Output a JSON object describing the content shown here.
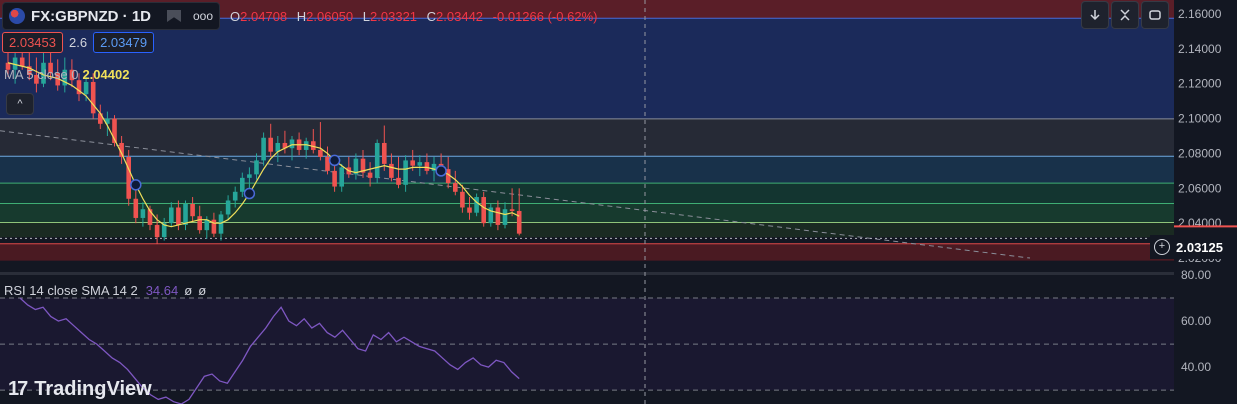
{
  "header": {
    "symbol": "FX:GBPNZD · 1D",
    "more": "ooo",
    "open_key": "O",
    "open": "2.04708",
    "high_key": "H",
    "high": "2.06050",
    "low_key": "L",
    "low": "2.03321",
    "close_key": "C",
    "close": "2.03442",
    "change": "-0.01266 (-0.62%)"
  },
  "quote": {
    "bid": "2.03453",
    "spread": "2.6",
    "ask": "2.03479"
  },
  "ma_legend": {
    "label": "MA 5 close 0",
    "value": "2.04402"
  },
  "rsi_legend": {
    "label": "RSI 14 close SMA 14 2",
    "value": "34.64",
    "extra1": "ø",
    "extra2": "ø"
  },
  "last_price": "2.03125",
  "toolbar": {
    "down_icon": "arrow-down-icon",
    "collapse_icon": "collapse-icon",
    "fullscreen_icon": "fullscreen-icon",
    "expand_up": "^"
  },
  "brand": {
    "name": "TradingView",
    "mark": "17"
  },
  "colors": {
    "up": "#26a69a",
    "down": "#ef5350",
    "ma": "#f0e05a",
    "rsi": "#7e57c2",
    "bg": "#131722"
  },
  "chart_data": [
    {
      "type": "candlestick",
      "title": "FX:GBPNZD · 1D",
      "ylim": [
        2.012,
        2.168
      ],
      "y_ticks": [
        "2.16000",
        "2.14000",
        "2.12000",
        "2.10000",
        "2.08000",
        "2.06000",
        "2.04000",
        "2.02000"
      ],
      "y_tick_values": [
        2.16,
        2.14,
        2.12,
        2.1,
        2.08,
        2.06,
        2.04,
        2.02
      ],
      "zones": [
        {
          "from": 2.1575,
          "to": 2.168,
          "color": "#5a1e28"
        },
        {
          "from": 2.0998,
          "to": 2.1575,
          "color": "#1b2a5a"
        },
        {
          "from": 2.0784,
          "to": 2.0998,
          "color": "#262a36"
        },
        {
          "from": 2.063,
          "to": 2.0784,
          "color": "#18314a"
        },
        {
          "from": 2.0513,
          "to": 2.063,
          "color": "#133530"
        },
        {
          "from": 2.0404,
          "to": 2.0513,
          "color": "#173a2e"
        },
        {
          "from": 2.032,
          "to": 2.0404,
          "color": "#1a2a22"
        },
        {
          "from": 2.0185,
          "to": 2.0282,
          "color": "#4a1a22"
        }
      ],
      "levels": [
        {
          "price": 2.1575,
          "color": "#4a6bd8"
        },
        {
          "price": 2.0998,
          "color": "#8a8e99"
        },
        {
          "price": 2.0784,
          "color": "#6fa8e0"
        },
        {
          "price": 2.063,
          "color": "#3fae74"
        },
        {
          "price": 2.0513,
          "color": "#3fae74"
        },
        {
          "price": 2.0404,
          "color": "#8fc47a"
        },
        {
          "price": 2.0282,
          "color": "#e04848"
        }
      ],
      "trendline": {
        "from": [
          0,
          2.093
        ],
        "to": [
          100,
          2.02
        ]
      },
      "candles": [
        [
          2.132,
          2.138,
          2.124,
          2.128
        ],
        [
          2.128,
          2.14,
          2.12,
          2.135
        ],
        [
          2.135,
          2.145,
          2.128,
          2.13
        ],
        [
          2.13,
          2.14,
          2.122,
          2.125
        ],
        [
          2.125,
          2.135,
          2.115,
          2.12
        ],
        [
          2.12,
          2.138,
          2.118,
          2.132
        ],
        [
          2.132,
          2.14,
          2.122,
          2.126
        ],
        [
          2.126,
          2.134,
          2.116,
          2.119
        ],
        [
          2.119,
          2.135,
          2.115,
          2.128
        ],
        [
          2.128,
          2.134,
          2.118,
          2.122
        ],
        [
          2.122,
          2.126,
          2.11,
          2.114
        ],
        [
          2.114,
          2.124,
          2.11,
          2.121
        ],
        [
          2.121,
          2.126,
          2.1,
          2.103
        ],
        [
          2.103,
          2.108,
          2.094,
          2.097
        ],
        [
          2.097,
          2.104,
          2.09,
          2.1
        ],
        [
          2.1,
          2.102,
          2.084,
          2.086
        ],
        [
          2.086,
          2.09,
          2.074,
          2.078
        ],
        [
          2.078,
          2.082,
          2.05,
          2.054
        ],
        [
          2.054,
          2.06,
          2.04,
          2.043
        ],
        [
          2.043,
          2.052,
          2.038,
          2.048
        ],
        [
          2.048,
          2.05,
          2.036,
          2.039
        ],
        [
          2.039,
          2.045,
          2.028,
          2.032
        ],
        [
          2.032,
          2.043,
          2.03,
          2.04
        ],
        [
          2.04,
          2.052,
          2.038,
          2.049
        ],
        [
          2.049,
          2.053,
          2.036,
          2.039
        ],
        [
          2.039,
          2.053,
          2.036,
          2.051
        ],
        [
          2.051,
          2.055,
          2.041,
          2.044
        ],
        [
          2.044,
          2.05,
          2.034,
          2.036
        ],
        [
          2.036,
          2.044,
          2.031,
          2.042
        ],
        [
          2.042,
          2.046,
          2.032,
          2.034
        ],
        [
          2.034,
          2.047,
          2.03,
          2.045
        ],
        [
          2.045,
          2.056,
          2.042,
          2.053
        ],
        [
          2.053,
          2.061,
          2.049,
          2.058
        ],
        [
          2.058,
          2.069,
          2.055,
          2.066
        ],
        [
          2.066,
          2.072,
          2.06,
          2.068
        ],
        [
          2.068,
          2.08,
          2.065,
          2.076
        ],
        [
          2.076,
          2.092,
          2.073,
          2.089
        ],
        [
          2.089,
          2.097,
          2.078,
          2.081
        ],
        [
          2.081,
          2.09,
          2.075,
          2.086
        ],
        [
          2.086,
          2.093,
          2.08,
          2.083
        ],
        [
          2.083,
          2.09,
          2.076,
          2.088
        ],
        [
          2.088,
          2.092,
          2.079,
          2.082
        ],
        [
          2.082,
          2.089,
          2.077,
          2.087
        ],
        [
          2.087,
          2.094,
          2.08,
          2.082
        ],
        [
          2.082,
          2.098,
          2.076,
          2.078
        ],
        [
          2.078,
          2.084,
          2.068,
          2.07
        ],
        [
          2.07,
          2.076,
          2.058,
          2.061
        ],
        [
          2.061,
          2.074,
          2.058,
          2.072
        ],
        [
          2.072,
          2.078,
          2.066,
          2.068
        ],
        [
          2.068,
          2.08,
          2.065,
          2.077
        ],
        [
          2.077,
          2.082,
          2.066,
          2.069
        ],
        [
          2.069,
          2.075,
          2.061,
          2.066
        ],
        [
          2.066,
          2.088,
          2.063,
          2.086
        ],
        [
          2.086,
          2.096,
          2.07,
          2.074
        ],
        [
          2.074,
          2.08,
          2.064,
          2.066
        ],
        [
          2.066,
          2.078,
          2.06,
          2.062
        ],
        [
          2.062,
          2.079,
          2.058,
          2.076
        ],
        [
          2.076,
          2.082,
          2.07,
          2.073
        ],
        [
          2.073,
          2.079,
          2.067,
          2.075
        ],
        [
          2.075,
          2.08,
          2.068,
          2.07
        ],
        [
          2.07,
          2.078,
          2.064,
          2.074
        ],
        [
          2.074,
          2.08,
          2.068,
          2.071
        ],
        [
          2.071,
          2.078,
          2.06,
          2.063
        ],
        [
          2.063,
          2.07,
          2.056,
          2.058
        ],
        [
          2.058,
          2.062,
          2.046,
          2.049
        ],
        [
          2.049,
          2.055,
          2.042,
          2.046
        ],
        [
          2.046,
          2.057,
          2.044,
          2.055
        ],
        [
          2.055,
          2.058,
          2.038,
          2.04
        ],
        [
          2.04,
          2.051,
          2.038,
          2.049
        ],
        [
          2.049,
          2.053,
          2.036,
          2.039
        ],
        [
          2.039,
          2.052,
          2.037,
          2.048
        ],
        [
          2.048,
          2.06,
          2.044,
          2.047
        ],
        [
          2.047,
          2.06,
          2.033,
          2.034
        ]
      ],
      "ma5": [
        2.132,
        2.131,
        2.13,
        2.129,
        2.127,
        2.125,
        2.124,
        2.123,
        2.121,
        2.119,
        2.116,
        2.113,
        2.108,
        2.103,
        2.096,
        2.088,
        2.08,
        2.071,
        2.062,
        2.054,
        2.047,
        2.042,
        2.039,
        2.038,
        2.039,
        2.04,
        2.041,
        2.042,
        2.042,
        2.04,
        2.04,
        2.042,
        2.046,
        2.051,
        2.057,
        2.064,
        2.071,
        2.077,
        2.081,
        2.083,
        2.085,
        2.085,
        2.085,
        2.084,
        2.083,
        2.08,
        2.076,
        2.073,
        2.07,
        2.069,
        2.07,
        2.071,
        2.072,
        2.073,
        2.072,
        2.071,
        2.071,
        2.072,
        2.072,
        2.072,
        2.071,
        2.07,
        2.068,
        2.065,
        2.061,
        2.056,
        2.052,
        2.049,
        2.047,
        2.046,
        2.045,
        2.046,
        2.044
      ],
      "markers": [
        24,
        46,
        63,
        84
      ],
      "last_price": 2.03125
    },
    {
      "type": "line",
      "title": "RSI 14 close SMA 14 2",
      "ylim": [
        24,
        80
      ],
      "y_ticks": [
        "80.00",
        "60.00",
        "40.00"
      ],
      "y_tick_values": [
        80,
        60,
        40
      ],
      "bands": [
        70,
        50,
        30
      ],
      "series": [
        {
          "name": "RSI",
          "values": [
            70,
            67,
            65,
            66,
            62,
            60,
            61,
            58,
            55,
            52,
            50,
            47,
            44,
            42,
            39,
            35,
            31,
            28,
            26,
            27,
            25,
            24,
            26,
            31,
            36,
            37,
            34,
            33,
            38,
            43,
            49,
            53,
            57,
            62,
            66,
            60,
            58,
            61,
            57,
            59,
            55,
            53,
            56,
            52,
            48,
            47,
            54,
            52,
            55,
            51,
            53,
            51,
            49,
            48,
            47,
            44,
            41,
            39,
            42,
            44,
            41,
            40,
            43,
            42,
            38,
            35
          ]
        }
      ]
    }
  ]
}
